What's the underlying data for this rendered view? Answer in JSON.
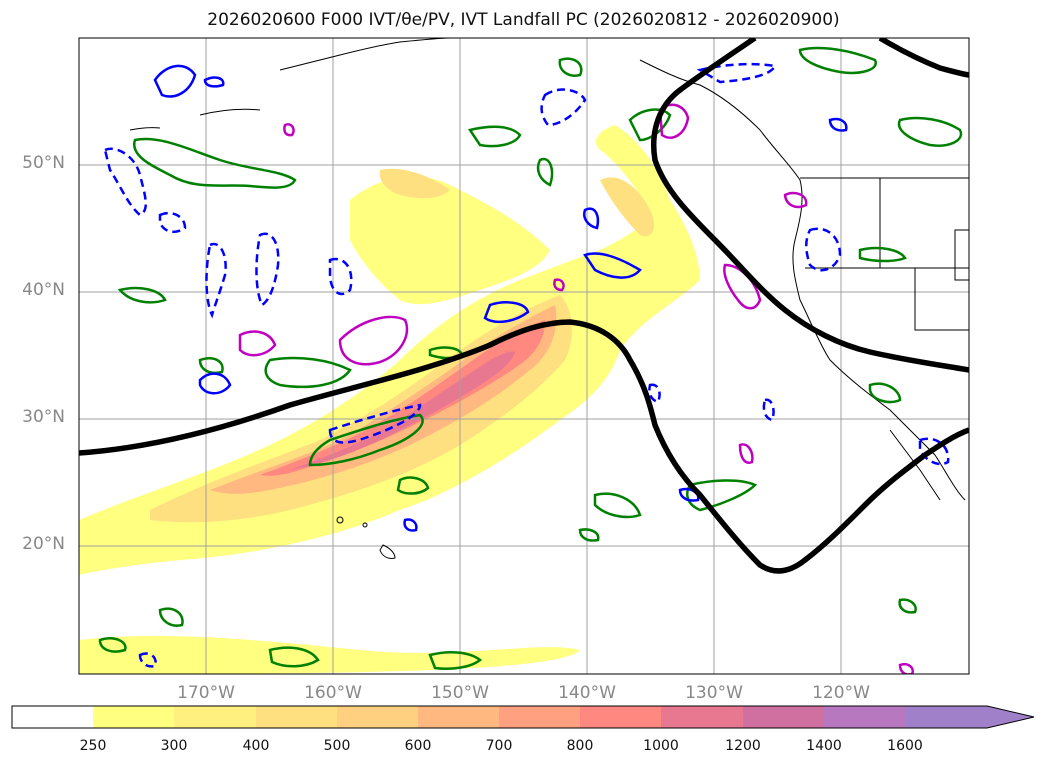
{
  "title": "2026020600 F000 IVT/θe/PV, IVT Landfall PC (2026020812 - 2026020900)",
  "lat_labels": [
    "50°N",
    "40°N",
    "30°N",
    "20°N"
  ],
  "lon_labels": [
    "170°W",
    "160°W",
    "150°W",
    "140°W",
    "130°W",
    "120°W"
  ],
  "colorbar": {
    "ticks": [
      "250",
      "300",
      "400",
      "500",
      "600",
      "700",
      "800",
      "1000",
      "1200",
      "1400",
      "1600"
    ],
    "colors": [
      "#ffffff",
      "#ffff80",
      "#fff080",
      "#ffe080",
      "#ffd080",
      "#ffb880",
      "#ffa080",
      "#ff8880",
      "#e87890",
      "#d070a0",
      "#b878c0",
      "#a080c8"
    ]
  },
  "legend_colors": {
    "ivt_fill": "#ffff80",
    "theta_e_contour": "#008000",
    "pv_positive": "#0000ff",
    "pv_negative_dashed": "#0000ff",
    "landfall_pc": "#000000",
    "magenta_contour": "#c000c0"
  }
}
